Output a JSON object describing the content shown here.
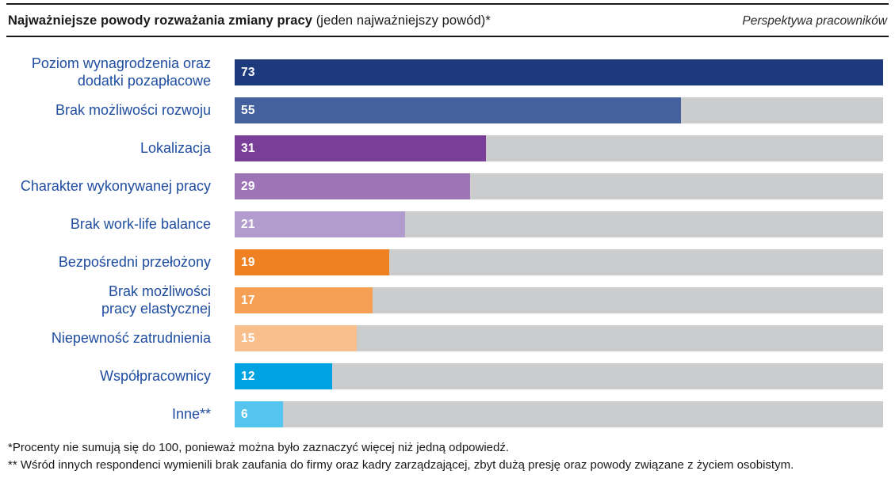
{
  "header": {
    "title_bold": "Najważniejsze powody rozważania zmiany pracy",
    "title_regular": " (jeden najważniejszy powód)*",
    "subtitle_right": "Perspektywa pracowników"
  },
  "colors": {
    "track": "#cbcccd",
    "label_text": "#1f4da0",
    "value_text": "#ffffff",
    "rule": "#1a1a1a"
  },
  "chart_data": {
    "type": "bar",
    "orientation": "horizontal",
    "title": "Najważniejsze powody rozważania zmiany pracy (jeden najważniejszy powód)*",
    "subtitle": "Perspektywa pracowników",
    "unit": "percent",
    "categories": [
      "Poziom wynagrodzenia oraz dodatki pozapłacowe",
      "Brak możliwości rozwoju",
      "Lokalizacja",
      "Charakter wykonywanej pracy",
      "Brak work-life balance",
      "Bezpośredni przełożony",
      "Brak możliwości pracy elastycznej",
      "Niepewność zatrudnienia",
      "Współpracownicy",
      "Inne**"
    ],
    "values": [
      73,
      55,
      31,
      29,
      21,
      19,
      17,
      15,
      12,
      6
    ],
    "value_labels_inside_bars": true,
    "grid": false,
    "legend": false,
    "axis_ticks_visible": false,
    "rows": [
      {
        "label": "Poziom wynagrodzenia oraz\ndodatki pozapłacowe",
        "value": 73,
        "color": "#1d3b7c",
        "width_pct": 100
      },
      {
        "label": "Brak możliwości rozwoju",
        "value": 55,
        "color": "#44619e",
        "width_pct": 68.8
      },
      {
        "label": "Lokalizacja",
        "value": 31,
        "color": "#793e97",
        "width_pct": 38.8
      },
      {
        "label": "Charakter wykonywanej pracy",
        "value": 29,
        "color": "#9d74b6",
        "width_pct": 36.3
      },
      {
        "label": "Brak work-life balance",
        "value": 21,
        "color": "#b29ccd",
        "width_pct": 26.3
      },
      {
        "label": "Bezpośredni przełożony",
        "value": 19,
        "color": "#f08122",
        "width_pct": 23.8
      },
      {
        "label": "Brak możliwości\npracy elastycznej",
        "value": 17,
        "color": "#f5a054",
        "width_pct": 21.3
      },
      {
        "label": "Niepewność zatrudnienia",
        "value": 15,
        "color": "#f8be8c",
        "width_pct": 18.8
      },
      {
        "label": "Współpracownicy",
        "value": 12,
        "color": "#00a3e2",
        "width_pct": 15.0
      },
      {
        "label": "Inne**",
        "value": 6,
        "color": "#53c5ef",
        "width_pct": 7.5
      }
    ]
  },
  "footnotes": [
    "*Procenty nie sumują się do 100, ponieważ można było zaznaczyć więcej niż jedną odpowiedź.",
    "** Wśród innych respondenci wymienili brak zaufania do firmy oraz kadry zarządzającej, zbyt dużą presję oraz powody związane z życiem osobistym."
  ]
}
